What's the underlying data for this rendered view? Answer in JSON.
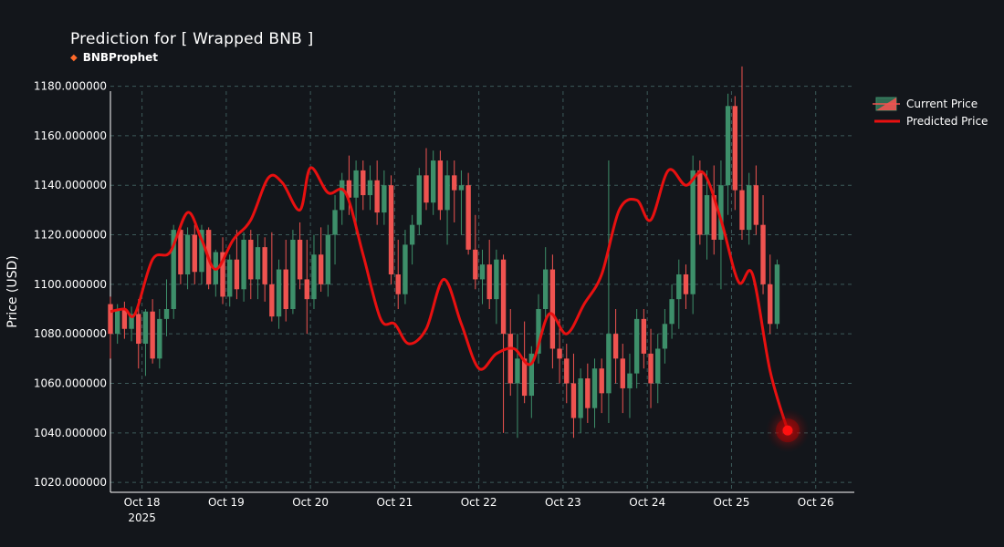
{
  "header": {
    "title": "Prediction for [ Wrapped BNB ]",
    "brand": "BNBProphet",
    "brand_icon": "diamond-icon"
  },
  "colors": {
    "background": "#13161b",
    "up": "#3d8f6a",
    "down": "#ef5350",
    "prediction": "#e81010",
    "grid": "#3c5a5a"
  },
  "chart_data": {
    "type": "candlestick",
    "title": "Prediction for [ Wrapped BNB ]",
    "ylabel": "Price (USD)",
    "xlabel": "",
    "ylim": [
      1016,
      1178
    ],
    "y_ticks": [
      "1020.000000",
      "1040.000000",
      "1060.000000",
      "1080.000000",
      "1100.000000",
      "1120.000000",
      "1140.000000",
      "1160.000000",
      "1180.000000"
    ],
    "y_tick_values": [
      1020,
      1040,
      1060,
      1080,
      1100,
      1120,
      1140,
      1160,
      1180
    ],
    "x_start": "2025-10-17 15:00",
    "x_end": "2025-10-26 11:00",
    "x_tick_labels": [
      "Oct 18",
      "Oct 19",
      "Oct 20",
      "Oct 21",
      "Oct 22",
      "Oct 23",
      "Oct 24",
      "Oct 25",
      "Oct 26"
    ],
    "x_tick_dates": [
      "2025-10-18",
      "2025-10-19",
      "2025-10-20",
      "2025-10-21",
      "2025-10-22",
      "2025-10-23",
      "2025-10-24",
      "2025-10-25",
      "2025-10-26"
    ],
    "x_year_label": "2025",
    "grid": true,
    "legend_position": "top-right outside",
    "series": [
      {
        "name": "Current Price",
        "type": "candlestick"
      },
      {
        "name": "Predicted Price",
        "type": "line"
      }
    ],
    "predicted": {
      "x": [
        "2025-10-17 15:00",
        "2025-10-17 19:00",
        "2025-10-17 22:00",
        "2025-10-18 03:00",
        "2025-10-18 08:00",
        "2025-10-18 13:00",
        "2025-10-18 17:00",
        "2025-10-18 21:00",
        "2025-10-19 02:00",
        "2025-10-19 07:00",
        "2025-10-19 12:00",
        "2025-10-19 16:00",
        "2025-10-19 21:00",
        "2025-10-20 00:00",
        "2025-10-20 05:00",
        "2025-10-20 10:00",
        "2025-10-20 15:00",
        "2025-10-20 20:00",
        "2025-10-21 00:00",
        "2025-10-21 04:00",
        "2025-10-21 09:00",
        "2025-10-21 14:00",
        "2025-10-21 19:00",
        "2025-10-22 00:00",
        "2025-10-22 05:00",
        "2025-10-22 10:00",
        "2025-10-22 15:00",
        "2025-10-22 20:00",
        "2025-10-23 01:00",
        "2025-10-23 06:00",
        "2025-10-23 11:00",
        "2025-10-23 16:00",
        "2025-10-23 21:00",
        "2025-10-24 01:00",
        "2025-10-24 06:00",
        "2025-10-24 11:00",
        "2025-10-24 16:00",
        "2025-10-24 21:00",
        "2025-10-25 02:00",
        "2025-10-25 06:00",
        "2025-10-25 11:00",
        "2025-10-25 16:00"
      ],
      "y": [
        1089,
        1090,
        1088,
        1110,
        1113,
        1129,
        1118,
        1106,
        1118,
        1126,
        1143,
        1141,
        1130,
        1147,
        1137,
        1137,
        1112,
        1086,
        1084,
        1076,
        1082,
        1102,
        1084,
        1066,
        1072,
        1074,
        1068,
        1088,
        1080,
        1092,
        1104,
        1130,
        1134,
        1126,
        1146,
        1140,
        1145,
        1126,
        1101,
        1104,
        1065,
        1041
      ]
    },
    "forecast_point": {
      "x": "2025-10-25 16:00",
      "y": 1041
    },
    "candles_hourly_from": "2025-10-17 15:00",
    "candles": [
      [
        1092,
        1095,
        1070,
        1080
      ],
      [
        1080,
        1092,
        1076,
        1090
      ],
      [
        1090,
        1093,
        1078,
        1082
      ],
      [
        1082,
        1091,
        1077,
        1088
      ],
      [
        1088,
        1094,
        1066,
        1076
      ],
      [
        1076,
        1090,
        1063,
        1089
      ],
      [
        1089,
        1094,
        1068,
        1070
      ],
      [
        1070,
        1090,
        1066,
        1086
      ],
      [
        1086,
        1102,
        1079,
        1090
      ],
      [
        1090,
        1124,
        1086,
        1122
      ],
      [
        1122,
        1124,
        1100,
        1104
      ],
      [
        1104,
        1123,
        1098,
        1120
      ],
      [
        1120,
        1124,
        1100,
        1105
      ],
      [
        1105,
        1124,
        1100,
        1122
      ],
      [
        1122,
        1123,
        1098,
        1100
      ],
      [
        1100,
        1114,
        1095,
        1113
      ],
      [
        1113,
        1119,
        1092,
        1095
      ],
      [
        1095,
        1112,
        1091,
        1110
      ],
      [
        1110,
        1122,
        1094,
        1098
      ],
      [
        1098,
        1121,
        1093,
        1118
      ],
      [
        1118,
        1122,
        1094,
        1102
      ],
      [
        1102,
        1120,
        1094,
        1115
      ],
      [
        1115,
        1119,
        1093,
        1100
      ],
      [
        1100,
        1121,
        1085,
        1087
      ],
      [
        1087,
        1110,
        1082,
        1106
      ],
      [
        1106,
        1118,
        1085,
        1090
      ],
      [
        1090,
        1122,
        1088,
        1118
      ],
      [
        1118,
        1125,
        1098,
        1102
      ],
      [
        1102,
        1118,
        1080,
        1094
      ],
      [
        1094,
        1120,
        1090,
        1112
      ],
      [
        1112,
        1123,
        1097,
        1100
      ],
      [
        1100,
        1124,
        1095,
        1120
      ],
      [
        1120,
        1136,
        1108,
        1130
      ],
      [
        1130,
        1145,
        1124,
        1142
      ],
      [
        1142,
        1152,
        1128,
        1135
      ],
      [
        1135,
        1150,
        1120,
        1146
      ],
      [
        1146,
        1150,
        1130,
        1136
      ],
      [
        1136,
        1148,
        1130,
        1142
      ],
      [
        1142,
        1150,
        1124,
        1129
      ],
      [
        1129,
        1146,
        1124,
        1140
      ],
      [
        1140,
        1144,
        1100,
        1104
      ],
      [
        1104,
        1118,
        1090,
        1096
      ],
      [
        1096,
        1122,
        1092,
        1116
      ],
      [
        1116,
        1128,
        1108,
        1124
      ],
      [
        1124,
        1147,
        1120,
        1144
      ],
      [
        1144,
        1155,
        1130,
        1133
      ],
      [
        1133,
        1154,
        1128,
        1150
      ],
      [
        1150,
        1154,
        1126,
        1130
      ],
      [
        1130,
        1150,
        1116,
        1144
      ],
      [
        1144,
        1150,
        1125,
        1138
      ],
      [
        1138,
        1146,
        1120,
        1140
      ],
      [
        1140,
        1145,
        1112,
        1114
      ],
      [
        1114,
        1128,
        1098,
        1102
      ],
      [
        1102,
        1114,
        1092,
        1108
      ],
      [
        1108,
        1118,
        1090,
        1094
      ],
      [
        1094,
        1114,
        1084,
        1110
      ],
      [
        1110,
        1112,
        1040,
        1080
      ],
      [
        1080,
        1090,
        1055,
        1060
      ],
      [
        1060,
        1080,
        1038,
        1070
      ],
      [
        1070,
        1085,
        1052,
        1055
      ],
      [
        1055,
        1075,
        1046,
        1072
      ],
      [
        1072,
        1096,
        1068,
        1090
      ],
      [
        1090,
        1115,
        1085,
        1106
      ],
      [
        1106,
        1112,
        1066,
        1074
      ],
      [
        1074,
        1086,
        1060,
        1070
      ],
      [
        1070,
        1076,
        1052,
        1060
      ],
      [
        1060,
        1072,
        1038,
        1046
      ],
      [
        1046,
        1066,
        1040,
        1062
      ],
      [
        1062,
        1068,
        1044,
        1050
      ],
      [
        1050,
        1070,
        1042,
        1066
      ],
      [
        1066,
        1070,
        1048,
        1056
      ],
      [
        1056,
        1150,
        1044,
        1080
      ],
      [
        1080,
        1090,
        1060,
        1070
      ],
      [
        1070,
        1076,
        1048,
        1058
      ],
      [
        1058,
        1072,
        1046,
        1064
      ],
      [
        1064,
        1090,
        1058,
        1086
      ],
      [
        1086,
        1090,
        1066,
        1072
      ],
      [
        1072,
        1082,
        1050,
        1060
      ],
      [
        1060,
        1080,
        1052,
        1074
      ],
      [
        1074,
        1090,
        1068,
        1084
      ],
      [
        1084,
        1100,
        1078,
        1094
      ],
      [
        1094,
        1110,
        1082,
        1104
      ],
      [
        1104,
        1108,
        1090,
        1096
      ],
      [
        1096,
        1152,
        1088,
        1146
      ],
      [
        1146,
        1150,
        1116,
        1120
      ],
      [
        1120,
        1146,
        1110,
        1136
      ],
      [
        1136,
        1148,
        1112,
        1118
      ],
      [
        1118,
        1150,
        1098,
        1140
      ],
      [
        1140,
        1177,
        1128,
        1172
      ],
      [
        1172,
        1176,
        1130,
        1138
      ],
      [
        1138,
        1188,
        1118,
        1122
      ],
      [
        1122,
        1145,
        1116,
        1140
      ],
      [
        1140,
        1148,
        1120,
        1124
      ],
      [
        1124,
        1136,
        1096,
        1100
      ],
      [
        1100,
        1112,
        1080,
        1084
      ],
      [
        1084,
        1110,
        1082,
        1108
      ]
    ]
  },
  "legend": {
    "current_price": "Current Price",
    "predicted_price": "Predicted Price"
  }
}
